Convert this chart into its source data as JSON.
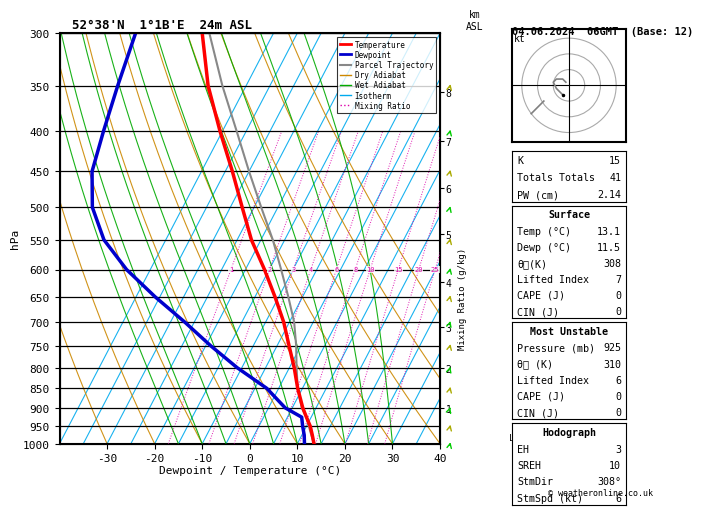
{
  "title_left": "52°38'N  1°1B'E  24m ASL",
  "title_right": "04.06.2024  06GMT  (Base: 12)",
  "xlabel": "Dewpoint / Temperature (°C)",
  "pressure_levels": [
    300,
    350,
    400,
    450,
    500,
    550,
    600,
    650,
    700,
    750,
    800,
    850,
    900,
    950,
    1000
  ],
  "isotherm_temps": [
    -40,
    -35,
    -30,
    -25,
    -20,
    -15,
    -10,
    -5,
    0,
    5,
    10,
    15,
    20,
    25,
    30,
    35,
    40
  ],
  "dry_adiabat_surface_temps": [
    -40,
    -30,
    -20,
    -10,
    0,
    10,
    20,
    30,
    40,
    50,
    60
  ],
  "wet_adiabat_surface_temps": [
    -15,
    -10,
    -5,
    0,
    5,
    10,
    15,
    20,
    25,
    30
  ],
  "mixing_ratio_values_gkg": [
    1,
    2,
    3,
    4,
    6,
    8,
    10,
    15,
    20,
    25
  ],
  "skew_factor": 45,
  "p_min": 300,
  "p_max": 1000,
  "T_min": -40,
  "T_max": 40,
  "temp_profile_p": [
    1000,
    975,
    950,
    925,
    900,
    850,
    800,
    750,
    700,
    650,
    600,
    550,
    500,
    450,
    400,
    350,
    300
  ],
  "temp_profile_T": [
    13.5,
    12.2,
    10.8,
    9.0,
    7.2,
    4.0,
    1.0,
    -2.5,
    -6.2,
    -10.8,
    -16.0,
    -22.0,
    -27.5,
    -33.5,
    -40.5,
    -48.0,
    -55.0
  ],
  "dewp_profile_p": [
    1000,
    975,
    950,
    925,
    900,
    850,
    800,
    750,
    700,
    650,
    600,
    550,
    500,
    450,
    400,
    350,
    300
  ],
  "dewp_profile_T": [
    11.5,
    10.5,
    9.2,
    8.0,
    3.5,
    -2.5,
    -11.0,
    -19.0,
    -27.0,
    -36.0,
    -45.0,
    -53.0,
    -59.0,
    -63.0,
    -65.0,
    -67.0,
    -69.0
  ],
  "parcel_profile_p": [
    1000,
    975,
    950,
    925,
    900,
    850,
    800,
    750,
    700,
    650,
    600,
    550,
    500,
    450,
    400,
    350,
    300
  ],
  "parcel_profile_T": [
    13.5,
    12.0,
    10.5,
    9.0,
    7.0,
    4.0,
    1.5,
    -1.0,
    -4.0,
    -8.0,
    -12.5,
    -17.5,
    -23.5,
    -30.0,
    -37.0,
    -45.0,
    -53.5
  ],
  "color_temp": "#ff0000",
  "color_dewp": "#0000cc",
  "color_parcel": "#888888",
  "color_dry_adiabat": "#cc8800",
  "color_wet_adiabat": "#00aa00",
  "color_isotherm": "#00aaee",
  "color_mixing_ratio": "#dd00aa",
  "km_labels": [
    1,
    2,
    3,
    4,
    5,
    6,
    7,
    8
  ],
  "km_pressures": [
    900,
    800,
    710,
    622,
    540,
    472,
    412,
    357
  ],
  "lcl_pressure": 982,
  "mr_label_p": 600,
  "stats_K": 15,
  "stats_TT": 41,
  "stats_PW": 2.14,
  "stats_surf_temp": 13.1,
  "stats_surf_dewp": 11.5,
  "stats_surf_theta_e": 308,
  "stats_surf_LI": 7,
  "stats_surf_CAPE": 0,
  "stats_surf_CIN": 0,
  "stats_mu_pres": 925,
  "stats_mu_theta_e": 310,
  "stats_mu_LI": 6,
  "stats_mu_CAPE": 0,
  "stats_mu_CIN": 0,
  "stats_EH": 3,
  "stats_SREH": 10,
  "stats_StmDir": "308°",
  "stats_StmSpd": 6,
  "hodo_u": [
    -1,
    -2,
    -4,
    -5,
    -4,
    -2
  ],
  "hodo_v": [
    1,
    2,
    2,
    1,
    -1,
    -3
  ],
  "hodo_u2": [
    -8,
    -10,
    -12
  ],
  "hodo_v2": [
    -5,
    -7,
    -9
  ],
  "wind_levels_p": [
    1000,
    950,
    900,
    850,
    800,
    750,
    700,
    650,
    600,
    550,
    500,
    450,
    400,
    350,
    300
  ],
  "wind_u": [
    2,
    2,
    3,
    3,
    4,
    4,
    5,
    5,
    5,
    5,
    6,
    6,
    6,
    5,
    4
  ],
  "wind_v": [
    2,
    2,
    2,
    3,
    3,
    4,
    4,
    5,
    5,
    5,
    5,
    6,
    6,
    5,
    4
  ],
  "wind_colors": [
    "#00cc00",
    "#aaaa00",
    "#00cc00",
    "#aaaa00",
    "#00cc00",
    "#aaaa00",
    "#00cc00",
    "#aaaa00",
    "#00cc00",
    "#aaaa00",
    "#00cc00",
    "#aaaa00",
    "#00cc00",
    "#aaaa00",
    "#00cc00"
  ]
}
